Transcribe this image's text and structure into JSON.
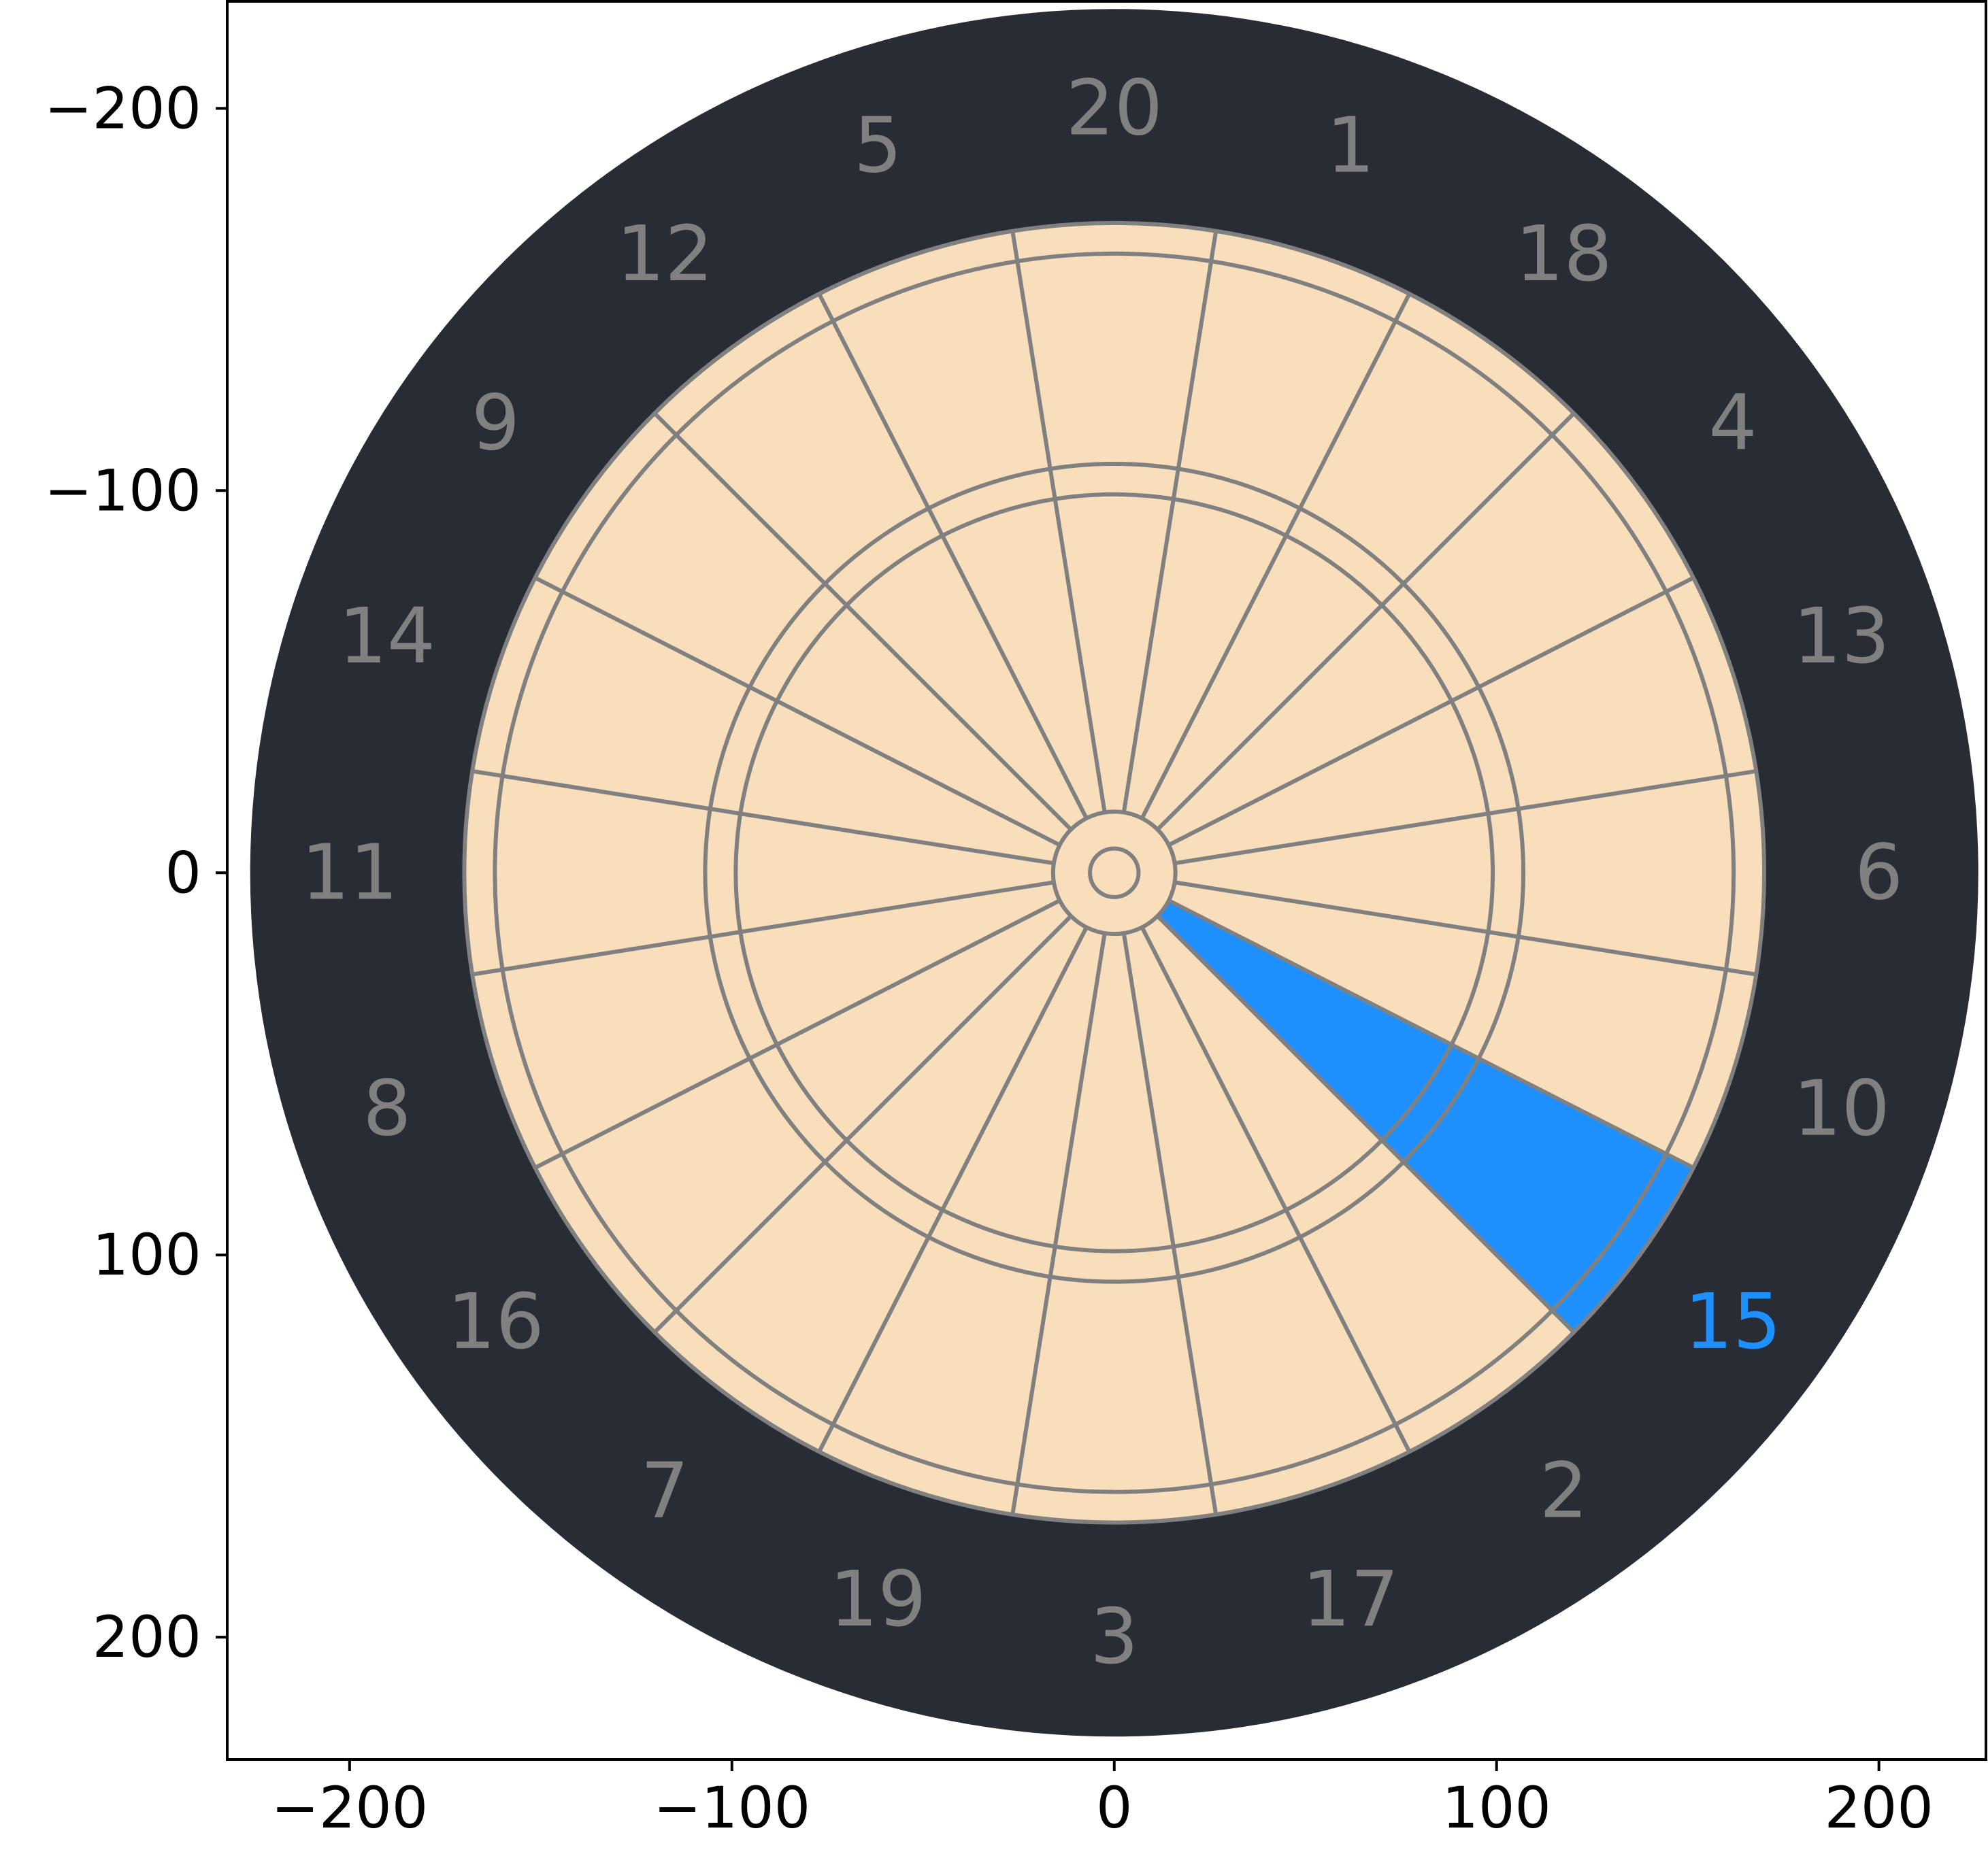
{
  "chart_data": {
    "type": "dartboard",
    "xlim": [
      -232,
      228
    ],
    "ylim": [
      232,
      -228
    ],
    "y_inverted": true,
    "x_ticks": [
      -200,
      -100,
      0,
      100,
      200
    ],
    "y_ticks": [
      -200,
      -100,
      0,
      100,
      200
    ],
    "x_tick_labels": [
      "−200",
      "−100",
      "0",
      "100",
      "200"
    ],
    "y_tick_labels": [
      "−200",
      "−100",
      "0",
      "100",
      "200"
    ],
    "board": {
      "outer_radius": 226,
      "double_outer": 170,
      "double_inner": 162,
      "treble_outer": 107,
      "treble_inner": 99,
      "outer_bull": 16,
      "bullseye": 6.35,
      "number_radius": 200
    },
    "sectors": [
      20,
      1,
      18,
      4,
      13,
      6,
      10,
      15,
      2,
      17,
      3,
      19,
      7,
      16,
      8,
      11,
      14,
      9,
      12,
      5
    ],
    "highlighted_sector": 15,
    "colors": {
      "surround": "#282c35",
      "bed": "#f8deba",
      "wire": "#808080",
      "label": "#808080",
      "highlight": "#1e90ff"
    }
  }
}
